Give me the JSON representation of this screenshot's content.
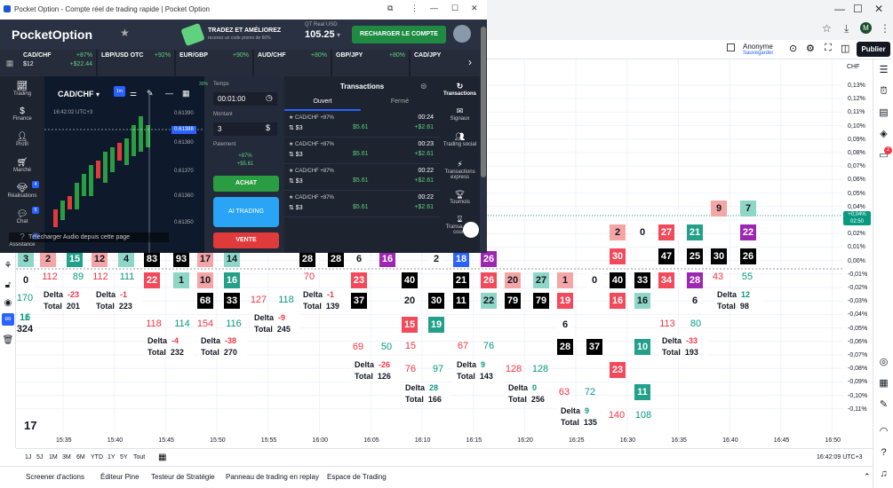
{
  "browser": {
    "window_title": "Pocket Option - Compte réel de trading rapide | Pocket Option",
    "minimize": "—",
    "maximize": "☐",
    "close": "✕"
  },
  "tv_header": {
    "anon_label": "Anonyme",
    "anon_sub": "Sauvegarder",
    "publish": "Publier",
    "currency": "CHF"
  },
  "pocket": {
    "logo": "PocketOption",
    "promo_main": "TRADEZ ET AMÉLIOREZ",
    "promo_sub": "recevez un code promo de 60%",
    "account_type": "QT Real   USD",
    "balance": "105.25",
    "recharge": "RECHARGER LE COMPTE",
    "assets": [
      {
        "name": "CAD/CHF",
        "pct": "+87%",
        "val": "$12",
        "pl": "+$22.44"
      },
      {
        "name": "LBP/USD OTC",
        "pct": "+92%",
        "val": "",
        "pl": ""
      },
      {
        "name": "EUR/GBP",
        "pct": "+90%",
        "val": "",
        "pl": ""
      },
      {
        "name": "AUD/CHF",
        "pct": "+80%",
        "val": "",
        "pl": ""
      },
      {
        "name": "GBP/JPY",
        "pct": "+80%",
        "val": "",
        "pl": ""
      },
      {
        "name": "CAD/JPY",
        "pct": "",
        "val": "",
        "pl": ""
      }
    ],
    "sidebar": [
      {
        "label": "Trading"
      },
      {
        "label": "Finance"
      },
      {
        "label": "Profil"
      },
      {
        "label": "Marché"
      },
      {
        "label": "Réalisations"
      },
      {
        "label": "Chat"
      },
      {
        "label": "Assistance"
      }
    ],
    "sidebar_badges": [
      "4",
      "5",
      "4"
    ],
    "pair": "CAD/CHF",
    "chart_time": "16:42:02 UTC+3",
    "chart_prices": [
      "0.61390",
      "0.61380",
      "0.61370",
      "0.61360",
      "0.61350"
    ],
    "price_tag": "0.61388",
    "audio_notice": "Télécharger Audio depuis cette page",
    "order": {
      "time_label": "Temps",
      "time_value": "00:01:00",
      "amount_label": "Montant",
      "amount_value": "3",
      "payout_label": "Paiement",
      "payout_pct": "+87%",
      "payout_amt": "+$5.61",
      "buy": "ACHAT",
      "ai": "AI TRADING",
      "sell": "VENTE"
    },
    "transactions": {
      "title": "Transactions",
      "tab_open": "Ouvert",
      "tab_closed": "Fermé",
      "rows": [
        {
          "pair": "★ CAD/CHF +87%",
          "amt": "⇅ $3",
          "mid": "$5.61",
          "time": "00:24",
          "pl": "+$2.61"
        },
        {
          "pair": "★ CAD/CHF +87%",
          "amt": "⇅ $3",
          "mid": "$5.61",
          "time": "00:23",
          "pl": "+$2.61"
        },
        {
          "pair": "★ CAD/CHF +87%",
          "amt": "⇅ $3",
          "mid": "$5.61",
          "time": "00:22",
          "pl": "+$2.61"
        },
        {
          "pair": "★ CAD/CHF +87%",
          "amt": "⇅ $3",
          "mid": "$5.61",
          "time": "00:22",
          "pl": "+$2.61"
        }
      ]
    },
    "right_side": [
      {
        "label": "Transactions"
      },
      {
        "label": "Signaux"
      },
      {
        "label": "Trading social"
      },
      {
        "label": "Transactions express"
      },
      {
        "label": "Tournois"
      },
      {
        "label": "Transa... en cours"
      }
    ]
  },
  "chart_data": {
    "type": "table",
    "price_axis": [
      "0,13%",
      "0,12%",
      "0,11%",
      "0,10%",
      "0,09%",
      "0,08%",
      "0,07%",
      "0,06%",
      "0,05%",
      "0,04%",
      "0,03%",
      "0,02%",
      "0,01%",
      "0,00%",
      "-0,01%",
      "-0,02%",
      "-0,03%",
      "-0,04%",
      "-0,05%",
      "-0,06%",
      "-0,07%",
      "-0,08%",
      "-0,09%",
      "-0,10%",
      "-0,11%"
    ],
    "price_tag": "+0,04%",
    "price_tag_time": "02:50",
    "time_axis": [
      "15:35",
      "15:40",
      "15:45",
      "15:50",
      "15:55",
      "16:00",
      "16:05",
      "16:10",
      "16:15",
      "16:20",
      "16:25",
      "16:30",
      "16:35",
      "16:40",
      "16:45",
      "16:50"
    ],
    "clock": "16:42:09 UTC+3",
    "deltas": [
      {
        "delta": "-23",
        "total": "201"
      },
      {
        "delta": "-1",
        "total": "223"
      },
      {
        "delta": "-4",
        "total": "232"
      },
      {
        "delta": "-38",
        "total": "270"
      },
      {
        "delta": "-9",
        "total": "245"
      },
      {
        "delta": "-1",
        "total": "139"
      },
      {
        "delta": "-26",
        "total": "126"
      },
      {
        "delta": "28",
        "total": "166"
      },
      {
        "delta": "9",
        "total": "143"
      },
      {
        "delta": "0",
        "total": "256"
      },
      {
        "delta": "9",
        "total": "135"
      },
      {
        "delta": "-33",
        "total": "193"
      },
      {
        "delta": "12",
        "total": "98"
      }
    ],
    "cells": [
      "3",
      "0",
      "2",
      "15",
      "12",
      "4",
      "83",
      "93",
      "22",
      "1",
      "17",
      "14",
      "68",
      "33",
      "10",
      "16",
      "28",
      "28",
      "6",
      "16",
      "23",
      "37",
      "20",
      "15",
      "2",
      "30",
      "19",
      "26",
      "18",
      "21",
      "11",
      "26",
      "22",
      "20",
      "79",
      "27",
      "79",
      "1",
      "19",
      "6",
      "28",
      "0",
      "40",
      "16",
      "37",
      "2",
      "30",
      "16",
      "10",
      "23",
      "11",
      "0",
      "33",
      "34",
      "27",
      "47",
      "21",
      "25",
      "28",
      "9",
      "30",
      "22",
      "7",
      "26",
      "40",
      "6"
    ],
    "vol_numbers": [
      "170",
      "324",
      "16",
      "112",
      "89",
      "112",
      "111",
      "118",
      "114",
      "154",
      "116",
      "127",
      "118",
      "70",
      "69",
      "76",
      "50",
      "15",
      "97",
      "67",
      "76",
      "128",
      "128",
      "63",
      "72",
      "140",
      "108",
      "113",
      "80",
      "43",
      "55",
      "16",
      "11"
    ],
    "legend_delta": "Delta",
    "legend_total": "Total",
    "tv_logo": "17"
  },
  "range_buttons": [
    "1J",
    "5J",
    "1M",
    "3M",
    "6M",
    "YTD",
    "1Y",
    "5Y",
    "Tout"
  ],
  "bottom_tabs": [
    "Screener d'actions",
    "Éditeur Pine",
    "Testeur de Stratégie",
    "Panneau de trading en replay",
    "Espace de Trading"
  ]
}
